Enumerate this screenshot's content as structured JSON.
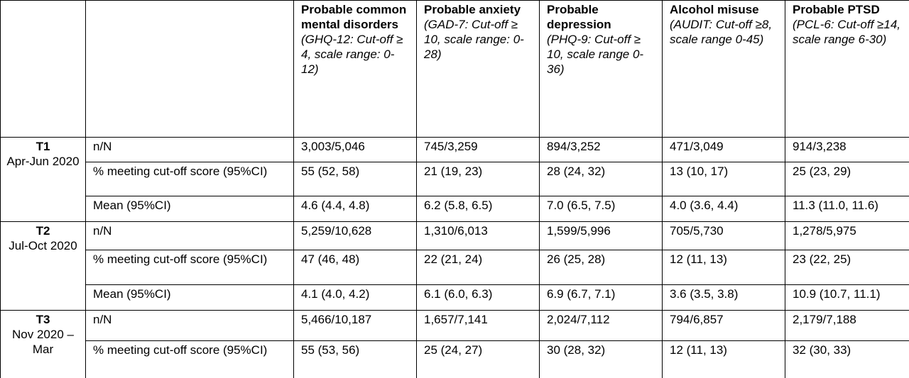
{
  "table": {
    "measures": [
      {
        "title": "Probable common mental disorders",
        "definition": "(GHQ-12: Cut-off ≥ 4, scale range: 0-12)"
      },
      {
        "title": "Probable anxiety",
        "definition": "(GAD-7: Cut-off ≥ 10, scale range: 0-28)"
      },
      {
        "title": "Probable depression",
        "definition": "(PHQ-9: Cut-off ≥ 10, scale range 0-36)"
      },
      {
        "title": "Alcohol misuse",
        "definition": "(AUDIT: Cut-off ≥8, scale range 0-45)"
      },
      {
        "title": "Probable PTSD",
        "definition": "(PCL-6: Cut-off ≥14, scale range 6-30)"
      }
    ],
    "groups": [
      {
        "period": "T1",
        "dates": "Apr-Jun 2020",
        "rows": [
          {
            "label": "n/N",
            "cells": [
              "3,003/5,046",
              "745/3,259",
              "894/3,252",
              "471/3,049",
              "914/3,238"
            ]
          },
          {
            "label": "% meeting cut-off score (95%CI)",
            "cells": [
              "55 (52, 58)",
              "21 (19, 23)",
              "28 (24, 32)",
              "13 (10, 17)",
              "25 (23, 29)"
            ]
          },
          {
            "label": "Mean (95%CI)",
            "cells": [
              "4.6 (4.4, 4.8)",
              "6.2 (5.8, 6.5)",
              "7.0 (6.5, 7.5)",
              "4.0 (3.6, 4.4)",
              "11.3 (11.0, 11.6)"
            ]
          }
        ]
      },
      {
        "period": "T2",
        "dates": "Jul-Oct 2020",
        "rows": [
          {
            "label": "n/N",
            "cells": [
              "5,259/10,628",
              "1,310/6,013",
              "1,599/5,996",
              "705/5,730",
              "1,278/5,975"
            ]
          },
          {
            "label": "% meeting cut-off score (95%CI)",
            "cells": [
              "47 (46, 48)",
              "22 (21, 24)",
              "26 (25, 28)",
              "12 (11, 13)",
              "23 (22, 25)"
            ]
          },
          {
            "label": "Mean (95%CI)",
            "cells": [
              "4.1 (4.0, 4.2)",
              "6.1 (6.0, 6.3)",
              "6.9 (6.7, 7.1)",
              "3.6 (3.5, 3.8)",
              "10.9 (10.7, 11.1)"
            ]
          }
        ]
      },
      {
        "period": "T3",
        "dates": "Nov 2020 – Mar",
        "rows": [
          {
            "label": "n/N",
            "cells": [
              "5,466/10,187",
              "1,657/7,141",
              "2,024/7,112",
              "794/6,857",
              "2,179/7,188"
            ]
          },
          {
            "label": "% meeting cut-off score (95%CI)",
            "cells": [
              "55 (53, 56)",
              "25 (24, 27)",
              "30 (28, 32)",
              "12 (11, 13)",
              "32 (30, 33)"
            ]
          }
        ]
      }
    ]
  }
}
